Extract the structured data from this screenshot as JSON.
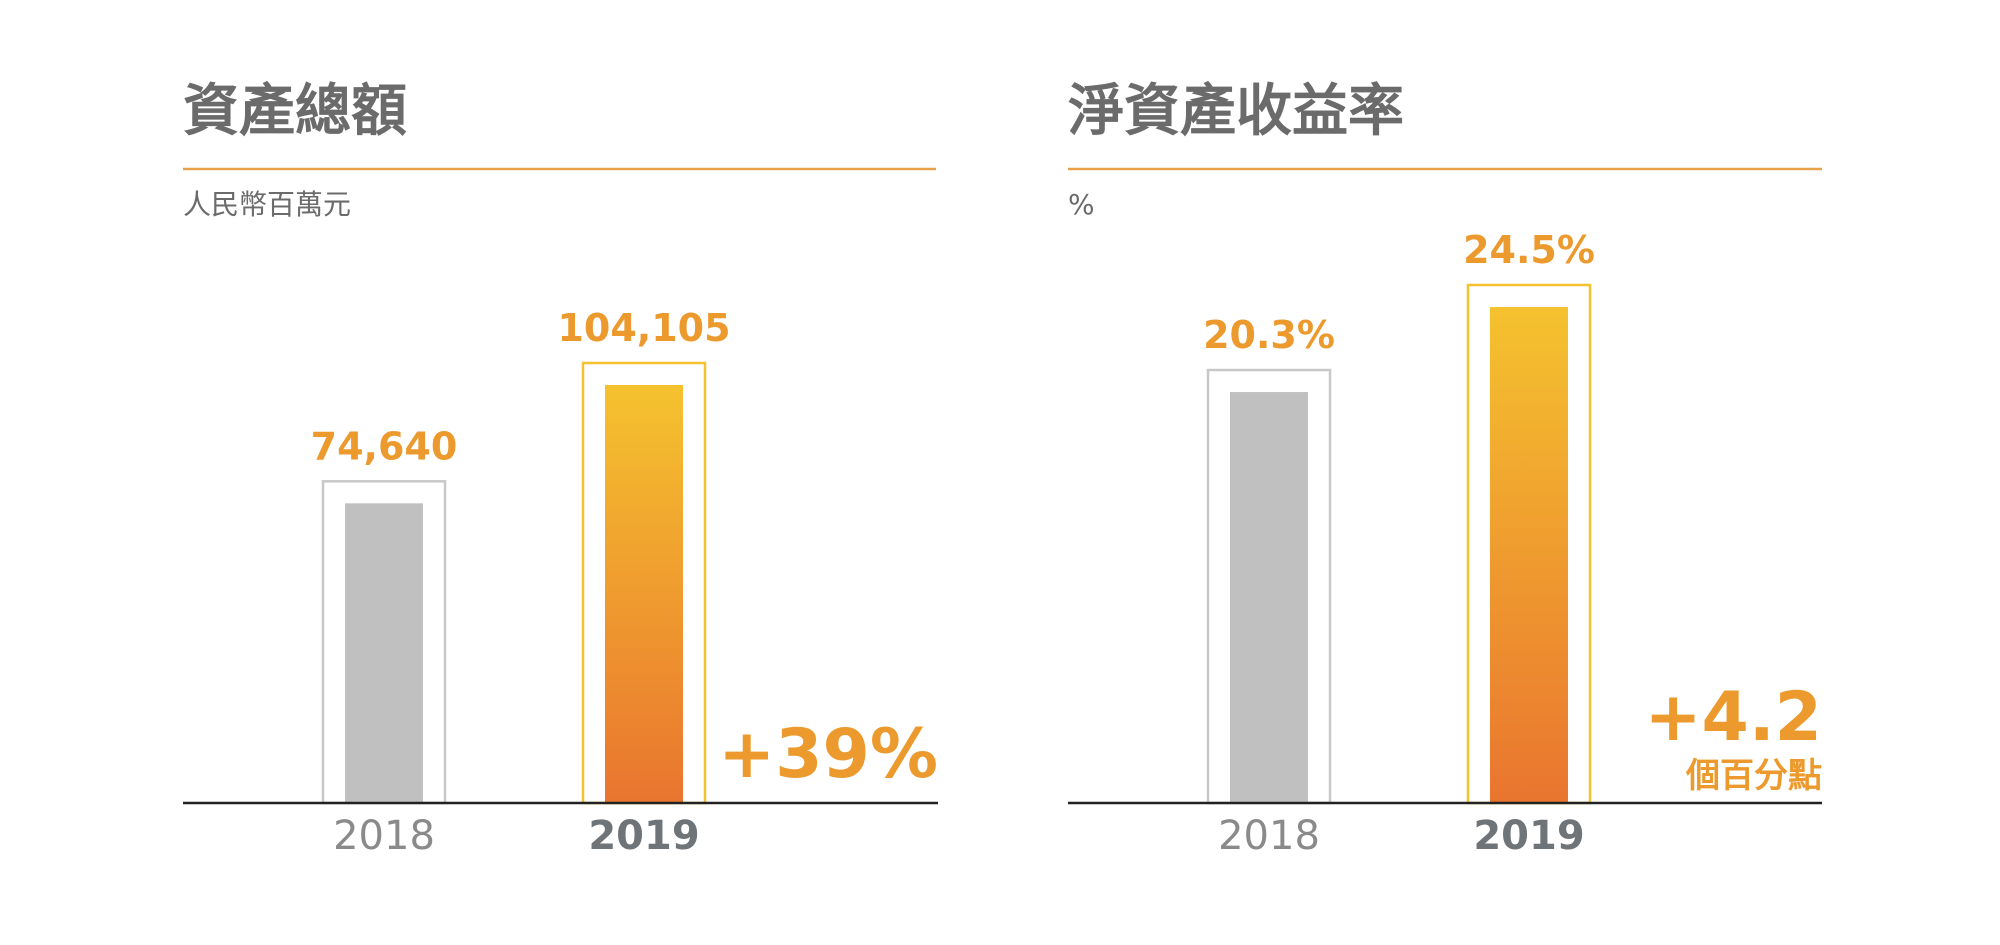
{
  "colors": {
    "accent": "#ec9a2d",
    "rule": "#e8a24a",
    "gray_bar": "#c0c0c0",
    "gray_outline": "#c8c8c8",
    "grad_top": "#f5c22f",
    "grad_bottom": "#e9752f",
    "title": "#6b6b6b",
    "axis_bold": "#6f7479"
  },
  "chart_data": [
    {
      "type": "bar",
      "title": "資產總額",
      "subtitle": "人民幣百萬元",
      "categories": [
        "2018",
        "2019"
      ],
      "values": [
        74640,
        104105
      ],
      "data_labels": [
        "74,640",
        "104,105"
      ],
      "ylim": [
        0,
        104105
      ],
      "change": {
        "value": "+39%",
        "note": ""
      },
      "grid": false,
      "highlight_category": "2019"
    },
    {
      "type": "bar",
      "title": "淨資產收益率",
      "subtitle": "%",
      "categories": [
        "2018",
        "2019"
      ],
      "values": [
        20.3,
        24.5
      ],
      "data_labels": [
        "20.3%",
        "24.5%"
      ],
      "ylim": [
        0,
        24.5
      ],
      "change": {
        "value": "+4.2",
        "note": "個百分點"
      },
      "grid": false,
      "highlight_category": "2019"
    }
  ]
}
